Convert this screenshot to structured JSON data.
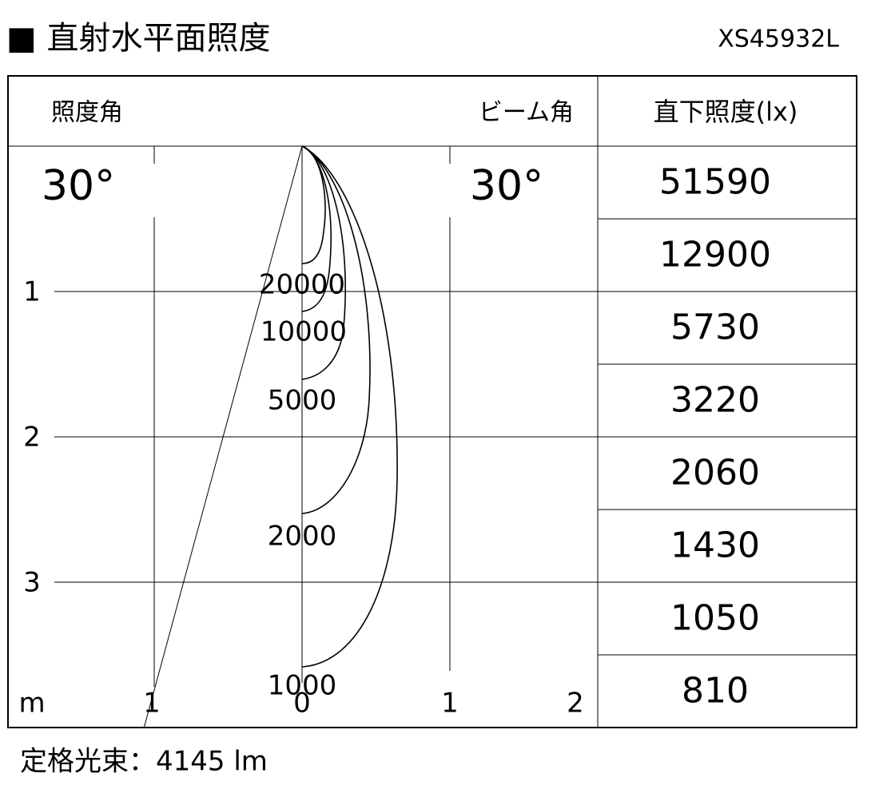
{
  "header": {
    "title": "■ 直射水平面照度",
    "model": "XS45932L"
  },
  "table": {
    "col_headers": [
      "照度角",
      "ビーム角",
      "直下照度(lx)"
    ],
    "illuminance_angle": "30°",
    "beam_angle": "30°",
    "illuminance": [
      51590,
      12900,
      5730,
      3220,
      2060,
      1430,
      1050,
      810
    ]
  },
  "diagram": {
    "distance_ticks": [
      1,
      2,
      3
    ],
    "unit": "m",
    "lateral_ticks": [
      1,
      0,
      1,
      2
    ],
    "contour_labels": [
      "20000",
      "10000",
      "5000",
      "2000",
      "1000"
    ]
  },
  "footer": "定格光束：4145 lm"
}
